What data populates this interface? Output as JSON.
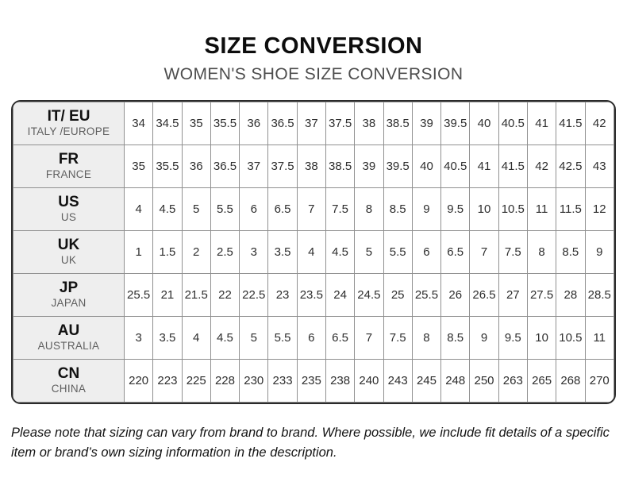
{
  "header": {
    "title": "SIZE CONVERSION",
    "subtitle": "WOMEN'S SHOE SIZE CONVERSION"
  },
  "chart_data": {
    "type": "table",
    "title": "SIZE CONVERSION",
    "rows": [
      {
        "code": "IT/ EU",
        "region": "ITALY /EUROPE",
        "sizes": [
          "34",
          "34.5",
          "35",
          "35.5",
          "36",
          "36.5",
          "37",
          "37.5",
          "38",
          "38.5",
          "39",
          "39.5",
          "40",
          "40.5",
          "41",
          "41.5",
          "42"
        ]
      },
      {
        "code": "FR",
        "region": "FRANCE",
        "sizes": [
          "35",
          "35.5",
          "36",
          "36.5",
          "37",
          "37.5",
          "38",
          "38.5",
          "39",
          "39.5",
          "40",
          "40.5",
          "41",
          "41.5",
          "42",
          "42.5",
          "43"
        ]
      },
      {
        "code": "US",
        "region": "US",
        "sizes": [
          "4",
          "4.5",
          "5",
          "5.5",
          "6",
          "6.5",
          "7",
          "7.5",
          "8",
          "8.5",
          "9",
          "9.5",
          "10",
          "10.5",
          "11",
          "11.5",
          "12"
        ]
      },
      {
        "code": "UK",
        "region": "UK",
        "sizes": [
          "1",
          "1.5",
          "2",
          "2.5",
          "3",
          "3.5",
          "4",
          "4.5",
          "5",
          "5.5",
          "6",
          "6.5",
          "7",
          "7.5",
          "8",
          "8.5",
          "9"
        ]
      },
      {
        "code": "JP",
        "region": "JAPAN",
        "sizes": [
          "25.5",
          "21",
          "21.5",
          "22",
          "22.5",
          "23",
          "23.5",
          "24",
          "24.5",
          "25",
          "25.5",
          "26",
          "26.5",
          "27",
          "27.5",
          "28",
          "28.5"
        ]
      },
      {
        "code": "AU",
        "region": "AUSTRALIA",
        "sizes": [
          "3",
          "3.5",
          "4",
          "4.5",
          "5",
          "5.5",
          "6",
          "6.5",
          "7",
          "7.5",
          "8",
          "8.5",
          "9",
          "9.5",
          "10",
          "10.5",
          "11"
        ]
      },
      {
        "code": "CN",
        "region": "CHINA",
        "sizes": [
          "220",
          "223",
          "225",
          "228",
          "230",
          "233",
          "235",
          "238",
          "240",
          "243",
          "245",
          "248",
          "250",
          "263",
          "265",
          "268",
          "270"
        ]
      }
    ]
  },
  "footnote": "Please note that sizing can vary from brand to brand. Where possible, we include fit details of a specific item or brand’s own sizing information in the description.",
  "colors": {
    "outer_border": "#2b2b2b",
    "inner_border": "#909090",
    "label_bg": "#eeeeee",
    "title_text": "#0d0d0d",
    "subtitle_text": "#4d4d4d"
  }
}
